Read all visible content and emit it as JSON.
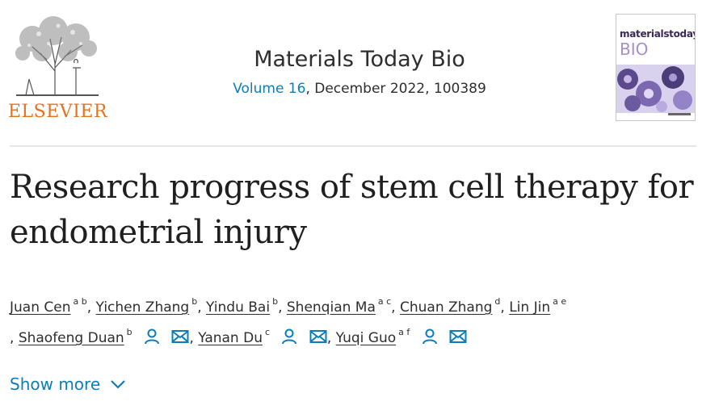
{
  "header": {
    "publisher": "ELSEVIER",
    "journal_title": "Materials Today Bio",
    "volume_label": "Volume 16",
    "issue_rest": ", December 2022, 100389",
    "cover": {
      "title_line_1": "materialstoday",
      "title_line_2": "BIO"
    }
  },
  "article": {
    "title": "Research progress of stem cell therapy for endometrial injury"
  },
  "authors": [
    {
      "name": "Juan Cen",
      "affil": "a b",
      "sep": ","
    },
    {
      "name": "Yichen Zhang",
      "affil": "b",
      "sep": ","
    },
    {
      "name": "Yindu Bai",
      "affil": "b",
      "sep": ","
    },
    {
      "name": "Shenqian Ma",
      "affil": "a c",
      "sep": ","
    },
    {
      "name": "Chuan Zhang",
      "affil": "d",
      "sep": ","
    },
    {
      "name": "Lin Jin",
      "affil": "a e",
      "sep": ""
    },
    {
      "name": "Shaofeng Duan",
      "affil": "b",
      "sep": ","
    },
    {
      "name": "Yanan Du",
      "affil": "c",
      "sep": ","
    },
    {
      "name": "Yuqi Guo",
      "affil": "a f",
      "sep": ""
    }
  ],
  "punct": {
    "comma": ","
  },
  "show_more": "Show more",
  "colors": {
    "link": "#0c7dbb",
    "publisher": "#e9711c"
  },
  "icons": [
    "person-icon",
    "envelope-icon",
    "chevron-down-icon"
  ]
}
